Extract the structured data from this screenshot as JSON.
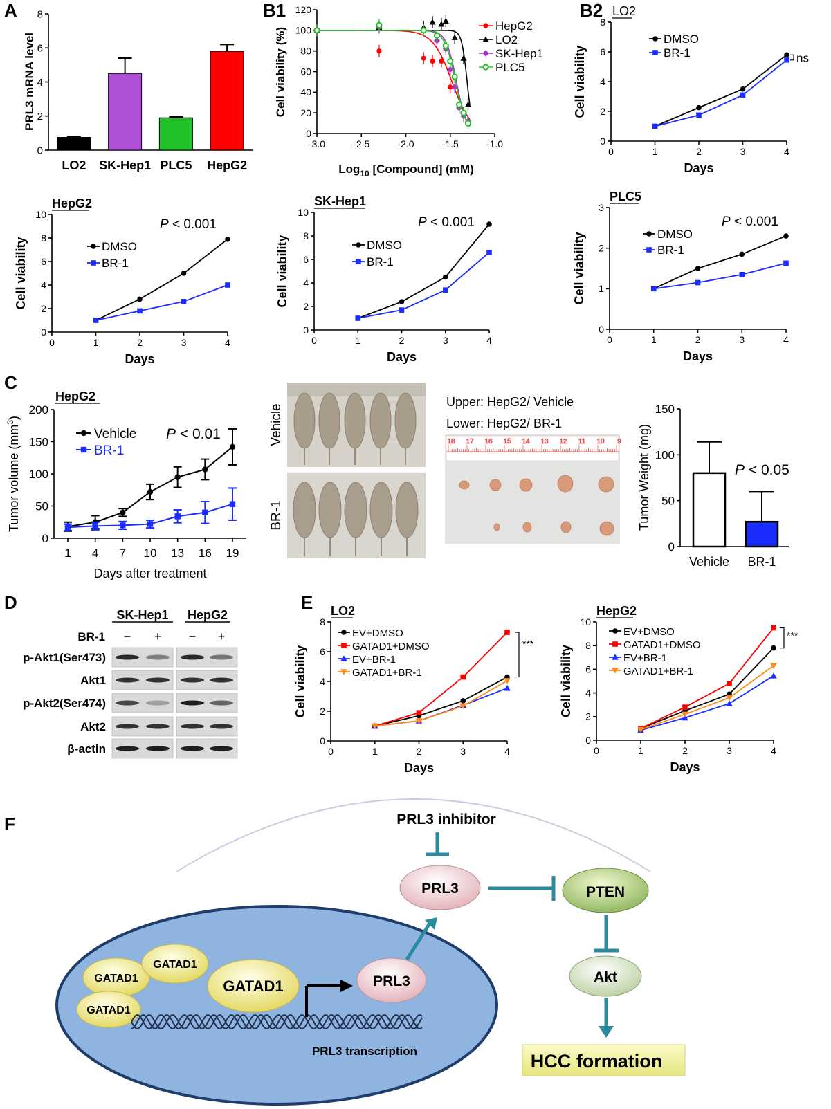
{
  "panel_labels": [
    "A",
    "B1",
    "B2",
    "C",
    "D",
    "E",
    "F"
  ],
  "colors": {
    "black": "#000000",
    "purple": "#b04fd8",
    "green": "#22c12a",
    "red": "#ff0000",
    "blue": "#1a2cff",
    "orange": "#ff8c1a",
    "magenta": "#b030d0",
    "teal": "#2b8a9e",
    "cell": "#8fb4e0",
    "pale_yellow": "#f4f3a6"
  },
  "chart_data": [
    {
      "id": "A",
      "type": "bar",
      "ylabel": "PRL3 mRNA level",
      "ylim": [
        0,
        8
      ],
      "yticks": [
        0,
        2,
        4,
        6,
        8
      ],
      "categories": [
        "LO2",
        "SK-Hep1",
        "PLC5",
        "HepG2"
      ],
      "values": [
        0.75,
        4.5,
        1.9,
        5.8
      ],
      "errors": [
        0.05,
        0.9,
        0.05,
        0.4
      ],
      "bar_colors": [
        "#000000",
        "#b04fd8",
        "#22c12a",
        "#ff0000"
      ]
    },
    {
      "id": "B1",
      "type": "scatter",
      "xlabel": "Log",
      "xlabel_sub": "10",
      "xlabel_rest": " [Compound] (mM)",
      "ylabel": "Cell viability (%)",
      "xlim": [
        -3.0,
        -1.0
      ],
      "xticks": [
        "-3.0",
        "-2.5",
        "-2.0",
        "-1.5",
        "-1.0"
      ],
      "ylim": [
        0,
        120
      ],
      "yticks": [
        0,
        20,
        40,
        60,
        80,
        100,
        120
      ],
      "series": [
        {
          "name": "HepG2",
          "color": "#ff0000",
          "marker": "circle",
          "x": [
            -3.0,
            -2.3,
            -1.8,
            -1.7,
            -1.6,
            -1.5,
            -1.4,
            -1.3
          ],
          "y": [
            100,
            80,
            73,
            70,
            70,
            45,
            25,
            12
          ]
        },
        {
          "name": "LO2",
          "color": "#000000",
          "marker": "triangle",
          "x": [
            -3.0,
            -2.3,
            -1.8,
            -1.7,
            -1.6,
            -1.55,
            -1.45,
            -1.35,
            -1.3
          ],
          "y": [
            100,
            103,
            103,
            108,
            106,
            109,
            93,
            73,
            28
          ]
        },
        {
          "name": "SK-Hep1",
          "color": "#b030d0",
          "marker": "diamond",
          "x": [
            -3.0,
            -2.3,
            -1.8,
            -1.65,
            -1.55,
            -1.5,
            -1.45,
            -1.4,
            -1.35,
            -1.3
          ],
          "y": [
            100,
            103,
            100,
            90,
            82,
            62,
            45,
            25,
            17,
            12
          ]
        },
        {
          "name": "PLC5",
          "color": "#22c12a",
          "marker": "open-circle",
          "x": [
            -3.0,
            -2.3,
            -1.8,
            -1.65,
            -1.55,
            -1.5,
            -1.45,
            -1.4,
            -1.35,
            -1.3
          ],
          "y": [
            100,
            105,
            100,
            95,
            85,
            70,
            55,
            28,
            20,
            10
          ]
        }
      ]
    },
    {
      "id": "B2",
      "type": "line",
      "title": "LO2",
      "xlabel": "Days",
      "ylabel": "Cell viability",
      "xlim": [
        0,
        4
      ],
      "xticks": [
        0,
        1,
        2,
        3,
        4
      ],
      "ylim": [
        0,
        8
      ],
      "yticks": [
        0,
        2,
        4,
        6,
        8
      ],
      "annotation": "ns",
      "series": [
        {
          "name": "DMSO",
          "color": "#000000",
          "marker": "circle",
          "x": [
            1,
            2,
            3,
            4
          ],
          "y": [
            1.0,
            2.25,
            3.5,
            5.8
          ]
        },
        {
          "name": "BR-1",
          "color": "#1a2cff",
          "marker": "square",
          "x": [
            1,
            2,
            3,
            4
          ],
          "y": [
            1.0,
            1.75,
            3.1,
            5.45
          ]
        }
      ]
    },
    {
      "id": "HepG2",
      "type": "line",
      "title": "HepG2",
      "xlabel": "Days",
      "ylabel": "Cell viability",
      "xlim": [
        0,
        4
      ],
      "xticks": [
        0,
        1,
        2,
        3,
        4
      ],
      "ylim": [
        0,
        10
      ],
      "yticks": [
        0,
        2,
        4,
        6,
        8,
        10
      ],
      "annotation_p": "P",
      "annotation_rest": " < 0.001",
      "series": [
        {
          "name": "DMSO",
          "color": "#000000",
          "marker": "circle",
          "x": [
            1,
            2,
            3,
            4
          ],
          "y": [
            1.0,
            2.8,
            5.0,
            7.9
          ]
        },
        {
          "name": "BR-1",
          "color": "#1a2cff",
          "marker": "square",
          "x": [
            1,
            2,
            3,
            4
          ],
          "y": [
            1.0,
            1.8,
            2.6,
            4.0
          ]
        }
      ]
    },
    {
      "id": "SK-Hep1",
      "type": "line",
      "title": "SK-Hep1",
      "xlabel": "Days",
      "ylabel": "Cell viability",
      "xlim": [
        0,
        4
      ],
      "xticks": [
        0,
        1,
        2,
        3,
        4
      ],
      "ylim": [
        0,
        10
      ],
      "yticks": [
        0,
        2,
        4,
        6,
        8,
        10
      ],
      "annotation_p": "P",
      "annotation_rest": " < 0.001",
      "series": [
        {
          "name": "DMSO",
          "color": "#000000",
          "marker": "circle",
          "x": [
            1,
            2,
            3,
            4
          ],
          "y": [
            1.0,
            2.4,
            4.5,
            9.0
          ]
        },
        {
          "name": "BR-1",
          "color": "#1a2cff",
          "marker": "square",
          "x": [
            1,
            2,
            3,
            4
          ],
          "y": [
            1.0,
            1.7,
            3.4,
            6.6
          ]
        }
      ]
    },
    {
      "id": "PLC5",
      "type": "line",
      "title": "PLC5",
      "xlabel": "Days",
      "ylabel": "Cell viability",
      "xlim": [
        0,
        4
      ],
      "xticks": [
        0,
        1,
        2,
        3,
        4
      ],
      "ylim": [
        0,
        3
      ],
      "yticks": [
        0,
        1,
        2,
        3
      ],
      "annotation_p": "P",
      "annotation_rest": " < 0.001",
      "series": [
        {
          "name": "DMSO",
          "color": "#000000",
          "marker": "circle",
          "x": [
            1,
            2,
            3,
            4
          ],
          "y": [
            1.0,
            1.5,
            1.85,
            2.3
          ]
        },
        {
          "name": "BR-1",
          "color": "#1a2cff",
          "marker": "square",
          "x": [
            1,
            2,
            3,
            4
          ],
          "y": [
            1.0,
            1.15,
            1.35,
            1.63
          ]
        }
      ]
    },
    {
      "id": "C-volume",
      "type": "line",
      "title": "HepG2",
      "xlabel": "Days after treatment",
      "ylabel": "Tumor volume (mm",
      "ylabel_sup": "3",
      "ylabel_end": ")",
      "x": [
        1,
        4,
        7,
        10,
        13,
        16,
        19
      ],
      "ylim": [
        0,
        200
      ],
      "yticks": [
        0,
        50,
        100,
        150,
        200
      ],
      "annotation_p": "P",
      "annotation_rest": " < 0.01",
      "series": [
        {
          "name": "Vehicle",
          "color": "#000000",
          "marker": "circle",
          "y": [
            18,
            25,
            40,
            72,
            95,
            107,
            142
          ],
          "err": [
            7,
            10,
            6,
            12,
            16,
            16,
            28
          ]
        },
        {
          "name": "BR-1",
          "color": "#1a2cff",
          "marker": "square",
          "y": [
            17,
            19,
            20,
            22,
            34,
            40,
            53
          ],
          "err": [
            5,
            6,
            6,
            6,
            10,
            17,
            25
          ]
        }
      ]
    },
    {
      "id": "C-weight",
      "type": "bar",
      "ylabel": "Tumor Weight (mg)",
      "ylim": [
        0,
        150
      ],
      "yticks": [
        0,
        50,
        100,
        150
      ],
      "categories": [
        "Vehicle",
        "BR-1"
      ],
      "values": [
        80,
        27
      ],
      "errors": [
        34,
        33
      ],
      "bar_colors": [
        "#ffffff",
        "#1a2cff"
      ],
      "annotation_p": "P",
      "annotation_rest": " < 0.05"
    },
    {
      "id": "E-LO2",
      "type": "line",
      "title": "LO2",
      "xlabel": "Days",
      "ylabel": "Cell viability",
      "xlim": [
        0,
        4
      ],
      "xticks": [
        0,
        1,
        2,
        3,
        4
      ],
      "ylim": [
        0,
        8
      ],
      "yticks": [
        0,
        2,
        4,
        6,
        8
      ],
      "annotation": "***",
      "series": [
        {
          "name": "EV+DMSO",
          "color": "#000000",
          "marker": "circle",
          "x": [
            1,
            2,
            3,
            4
          ],
          "y": [
            1.0,
            1.7,
            2.7,
            4.3
          ]
        },
        {
          "name": "GATAD1+DMSO",
          "color": "#ff0000",
          "marker": "square",
          "x": [
            1,
            2,
            3,
            4
          ],
          "y": [
            1.0,
            1.9,
            4.3,
            7.3
          ]
        },
        {
          "name": "EV+BR-1",
          "color": "#1a2cff",
          "marker": "triangle",
          "x": [
            1,
            2,
            3,
            4
          ],
          "y": [
            1.0,
            1.35,
            2.4,
            3.55
          ]
        },
        {
          "name": "GATAD1+BR-1",
          "color": "#ff8c1a",
          "marker": "triangle-down",
          "x": [
            1,
            2,
            3,
            4
          ],
          "y": [
            1.0,
            1.35,
            2.35,
            4.05
          ]
        }
      ]
    },
    {
      "id": "E-HepG2",
      "type": "line",
      "title": "HepG2",
      "xlabel": "Days",
      "ylabel": "Cell viability",
      "xlim": [
        0,
        4
      ],
      "xticks": [
        0,
        1,
        2,
        3,
        4
      ],
      "ylim": [
        0,
        10
      ],
      "yticks": [
        0,
        2,
        4,
        6,
        8,
        10
      ],
      "annotation": "***",
      "series": [
        {
          "name": "EV+DMSO",
          "color": "#000000",
          "marker": "circle",
          "x": [
            1,
            2,
            3,
            4
          ],
          "y": [
            1.0,
            2.5,
            3.9,
            7.8
          ]
        },
        {
          "name": "GATAD1+DMSO",
          "color": "#ff0000",
          "marker": "square",
          "x": [
            1,
            2,
            3,
            4
          ],
          "y": [
            1.0,
            2.8,
            4.8,
            9.5
          ]
        },
        {
          "name": "EV+BR-1",
          "color": "#1a2cff",
          "marker": "triangle",
          "x": [
            1,
            2,
            3,
            4
          ],
          "y": [
            0.85,
            1.9,
            3.1,
            5.45
          ]
        },
        {
          "name": "GATAD1+BR-1",
          "color": "#ff8c1a",
          "marker": "triangle-down",
          "x": [
            1,
            2,
            3,
            4
          ],
          "y": [
            0.9,
            2.2,
            3.6,
            6.3
          ]
        }
      ]
    }
  ],
  "panel_c_images": {
    "row_vehicle": "Vehicle",
    "row_br1": "BR-1",
    "upper_label": "Upper: HepG2/ Vehicle",
    "lower_label": "Lower: HepG2/ BR-1",
    "ruler_marks": [
      "18",
      "17",
      "16",
      "15",
      "14",
      "13",
      "12",
      "11",
      "10",
      "9"
    ]
  },
  "western_blot": {
    "groups": [
      "SK-Hep1",
      "HepG2"
    ],
    "treatment_label": "BR-1",
    "signs": [
      "−",
      "+",
      "−",
      "+"
    ],
    "rows": [
      "p-Akt1(Ser473)",
      "Akt1",
      "p-Akt2(Ser474)",
      "Akt2",
      "β-actin"
    ]
  },
  "pathway": {
    "inhibitor": "PRL3 inhibitor",
    "prl3": "PRL3",
    "pten": "PTEN",
    "akt": "Akt",
    "hcc": "HCC formation",
    "nucleus_prl3": "PRL3",
    "gatad1": [
      "GATAD1",
      "GATAD1",
      "GATAD1",
      "GATAD1"
    ],
    "transcription": "PRL3 transcription"
  }
}
